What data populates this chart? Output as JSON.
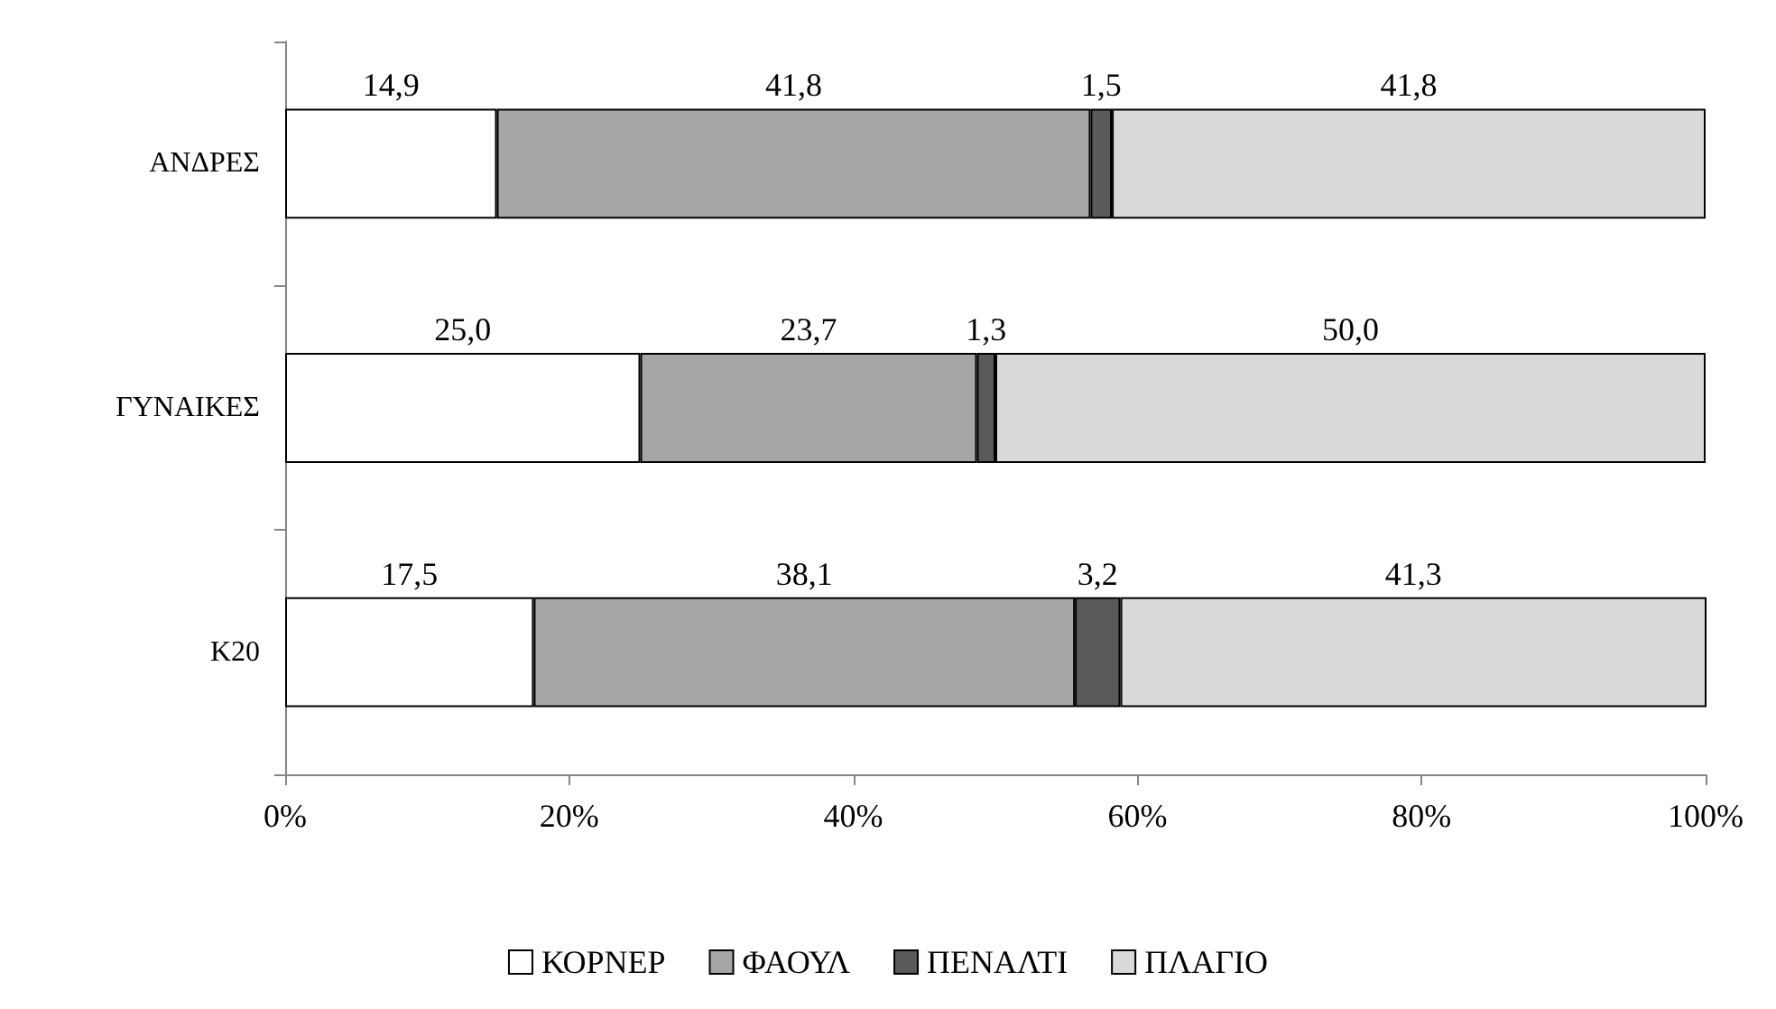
{
  "chart_data": {
    "type": "bar",
    "orientation": "horizontal",
    "stacked": true,
    "categories": [
      "ΑΝΔΡΕΣ",
      "ΓΥΝΑΙΚΕΣ",
      "Κ20"
    ],
    "series": [
      {
        "name": "ΚΟΡΝΕΡ",
        "color": "#ffffff",
        "values": [
          14.9,
          25.0,
          17.5
        ],
        "value_labels": [
          "14,9",
          "25,0",
          "17,5"
        ]
      },
      {
        "name": "ΦΑΟΥΛ",
        "color": "#a6a6a6",
        "values": [
          41.8,
          23.7,
          38.1
        ],
        "value_labels": [
          "41,8",
          "23,7",
          "38,1"
        ]
      },
      {
        "name": "ΠΕΝΑΛΤΙ",
        "color": "#595959",
        "values": [
          1.5,
          1.3,
          3.2
        ],
        "value_labels": [
          "1,5",
          "1,3",
          "3,2"
        ]
      },
      {
        "name": "ΠΛΑΓΙΟ",
        "color": "#d9d9d9",
        "values": [
          41.8,
          50.0,
          41.3
        ],
        "value_labels": [
          "41,8",
          "50,0",
          "41,3"
        ]
      }
    ],
    "xlim": [
      0,
      100
    ],
    "xticks": [
      {
        "value": 0,
        "label": "0%"
      },
      {
        "value": 20,
        "label": "20%"
      },
      {
        "value": 40,
        "label": "40%"
      },
      {
        "value": 60,
        "label": "60%"
      },
      {
        "value": 80,
        "label": "80%"
      },
      {
        "value": 100,
        "label": "100%"
      }
    ],
    "grid": false,
    "legend": "bottom"
  }
}
